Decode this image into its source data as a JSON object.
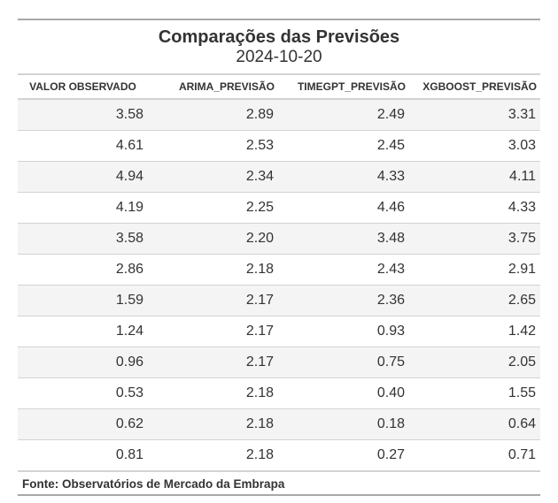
{
  "table": {
    "title": "Comparações das Previsões",
    "subtitle": "2024-10-20",
    "columns": [
      "VALOR OBSERVADO",
      "ARIMA_PREVISÃO",
      "TIMEGPT_PREVISÃO",
      "XGBOOST_PREVISÃO"
    ],
    "rows": [
      [
        "3.58",
        "2.89",
        "2.49",
        "3.31"
      ],
      [
        "4.61",
        "2.53",
        "2.45",
        "3.03"
      ],
      [
        "4.94",
        "2.34",
        "4.33",
        "4.11"
      ],
      [
        "4.19",
        "2.25",
        "4.46",
        "4.33"
      ],
      [
        "3.58",
        "2.20",
        "3.48",
        "3.75"
      ],
      [
        "2.86",
        "2.18",
        "2.43",
        "2.91"
      ],
      [
        "1.59",
        "2.17",
        "2.36",
        "2.65"
      ],
      [
        "1.24",
        "2.17",
        "0.93",
        "1.42"
      ],
      [
        "0.96",
        "2.17",
        "0.75",
        "2.05"
      ],
      [
        "0.53",
        "2.18",
        "0.40",
        "1.55"
      ],
      [
        "0.62",
        "2.18",
        "0.18",
        "0.64"
      ],
      [
        "0.81",
        "2.18",
        "0.27",
        "0.71"
      ]
    ],
    "source": "Fonte: Observatórios de Mercado da Embrapa",
    "stripe_color": "#f4f4f4",
    "rule_color": "#d3d3d3"
  }
}
